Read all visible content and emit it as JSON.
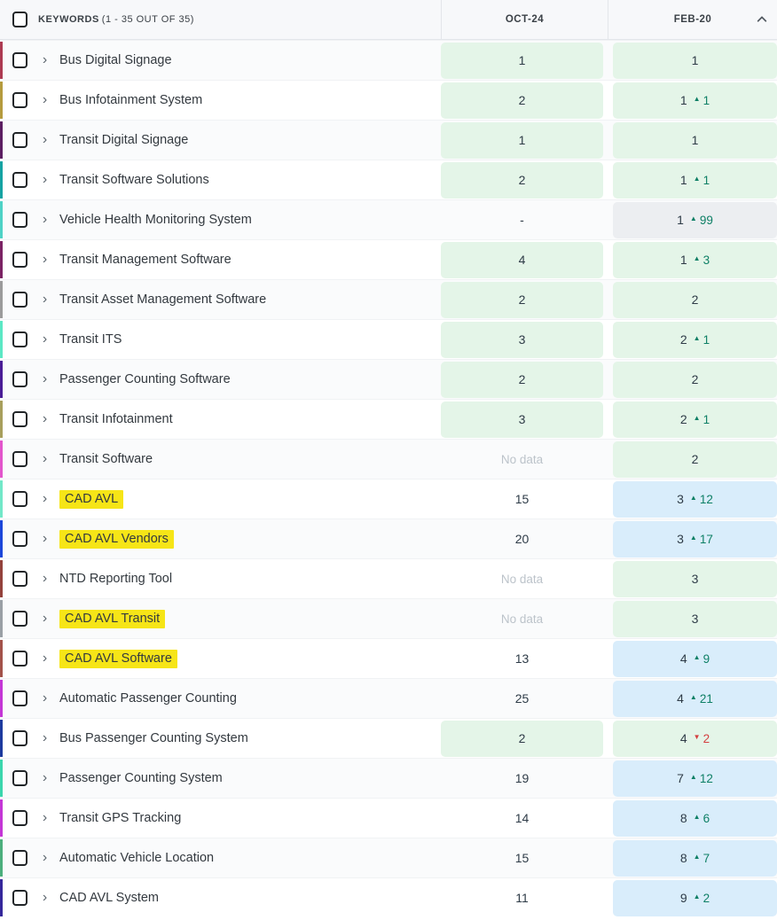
{
  "header": {
    "keywords_label": "KEYWORDS",
    "keywords_count": "(1 - 35 OUT OF 35)",
    "col1": "OCT-24",
    "col2": "FEB-20",
    "sort_icon": "chevron-up"
  },
  "icons": {
    "chevron_right": "›",
    "up_triangle": "▲",
    "down_triangle": "▼"
  },
  "colors": {
    "cell_green": "#e4f5e8",
    "cell_blue": "#d9edfb",
    "cell_gray": "#eceef1",
    "change_up": "#0d7f65",
    "change_down": "#d43f3f",
    "highlight_yellow": "#f6e517"
  },
  "rows": [
    {
      "keyword": "Bus Digital Signage",
      "highlight": false,
      "edge_color": "#ad3b52",
      "oct": {
        "value": "1",
        "bg": "green"
      },
      "feb": {
        "value": "1",
        "bg": "green"
      }
    },
    {
      "keyword": "Bus Infotainment System",
      "highlight": false,
      "edge_color": "#b59b3e",
      "oct": {
        "value": "2",
        "bg": "green"
      },
      "feb": {
        "value": "1",
        "bg": "green",
        "change": {
          "dir": "up",
          "amount": "1"
        }
      }
    },
    {
      "keyword": "Transit Digital Signage",
      "highlight": false,
      "edge_color": "#5c1e62",
      "oct": {
        "value": "1",
        "bg": "green"
      },
      "feb": {
        "value": "1",
        "bg": "green"
      }
    },
    {
      "keyword": "Transit Software Solutions",
      "highlight": false,
      "edge_color": "#15a3a3",
      "oct": {
        "value": "2",
        "bg": "green"
      },
      "feb": {
        "value": "1",
        "bg": "green",
        "change": {
          "dir": "up",
          "amount": "1"
        }
      }
    },
    {
      "keyword": "Vehicle Health Monitoring System",
      "highlight": false,
      "edge_color": "#4ed2c6",
      "oct": {
        "value": "-",
        "bg": "none"
      },
      "feb": {
        "value": "1",
        "bg": "gray",
        "change": {
          "dir": "up",
          "amount": "99"
        }
      }
    },
    {
      "keyword": "Transit Management Software",
      "highlight": false,
      "edge_color": "#7b2364",
      "oct": {
        "value": "4",
        "bg": "green"
      },
      "feb": {
        "value": "1",
        "bg": "green",
        "change": {
          "dir": "up",
          "amount": "3"
        }
      }
    },
    {
      "keyword": "Transit Asset Management Software",
      "highlight": false,
      "edge_color": "#9b9b9b",
      "oct": {
        "value": "2",
        "bg": "green"
      },
      "feb": {
        "value": "2",
        "bg": "green"
      }
    },
    {
      "keyword": "Transit ITS",
      "highlight": false,
      "edge_color": "#5be8c4",
      "oct": {
        "value": "3",
        "bg": "green"
      },
      "feb": {
        "value": "2",
        "bg": "green",
        "change": {
          "dir": "up",
          "amount": "1"
        }
      }
    },
    {
      "keyword": "Passenger Counting Software",
      "highlight": false,
      "edge_color": "#4a1d96",
      "oct": {
        "value": "2",
        "bg": "green"
      },
      "feb": {
        "value": "2",
        "bg": "green"
      }
    },
    {
      "keyword": "Transit Infotainment",
      "highlight": false,
      "edge_color": "#a89f5c",
      "oct": {
        "value": "3",
        "bg": "green"
      },
      "feb": {
        "value": "2",
        "bg": "green",
        "change": {
          "dir": "up",
          "amount": "1"
        }
      }
    },
    {
      "keyword": "Transit Software",
      "highlight": false,
      "edge_color": "#e355cc",
      "oct": {
        "value": "No data",
        "bg": "none"
      },
      "feb": {
        "value": "2",
        "bg": "green"
      }
    },
    {
      "keyword": "CAD AVL",
      "highlight": true,
      "edge_color": "#72e8c8",
      "oct": {
        "value": "15",
        "bg": "none"
      },
      "feb": {
        "value": "3",
        "bg": "blue",
        "change": {
          "dir": "up",
          "amount": "12"
        }
      }
    },
    {
      "keyword": "CAD AVL Vendors",
      "highlight": true,
      "edge_color": "#1c47da",
      "oct": {
        "value": "20",
        "bg": "none"
      },
      "feb": {
        "value": "3",
        "bg": "blue",
        "change": {
          "dir": "up",
          "amount": "17"
        }
      }
    },
    {
      "keyword": "NTD Reporting Tool",
      "highlight": false,
      "edge_color": "#93423c",
      "oct": {
        "value": "No data",
        "bg": "none"
      },
      "feb": {
        "value": "3",
        "bg": "green"
      }
    },
    {
      "keyword": "CAD AVL Transit",
      "highlight": true,
      "edge_color": "#9aa0a6",
      "oct": {
        "value": "No data",
        "bg": "none"
      },
      "feb": {
        "value": "3",
        "bg": "green"
      }
    },
    {
      "keyword": "CAD AVL Software",
      "highlight": true,
      "edge_color": "#a3524a",
      "oct": {
        "value": "13",
        "bg": "none"
      },
      "feb": {
        "value": "4",
        "bg": "blue",
        "change": {
          "dir": "up",
          "amount": "9"
        }
      }
    },
    {
      "keyword": "Automatic Passenger Counting",
      "highlight": false,
      "edge_color": "#c436d6",
      "oct": {
        "value": "25",
        "bg": "none"
      },
      "feb": {
        "value": "4",
        "bg": "blue",
        "change": {
          "dir": "up",
          "amount": "21"
        }
      }
    },
    {
      "keyword": "Bus Passenger Counting System",
      "highlight": false,
      "edge_color": "#1d3a9e",
      "oct": {
        "value": "2",
        "bg": "green"
      },
      "feb": {
        "value": "4",
        "bg": "green",
        "change": {
          "dir": "down",
          "amount": "2"
        }
      }
    },
    {
      "keyword": "Passenger Counting System",
      "highlight": false,
      "edge_color": "#3bd6ad",
      "oct": {
        "value": "19",
        "bg": "none"
      },
      "feb": {
        "value": "7",
        "bg": "blue",
        "change": {
          "dir": "up",
          "amount": "12"
        }
      }
    },
    {
      "keyword": "Transit GPS Tracking",
      "highlight": false,
      "edge_color": "#c436d6",
      "oct": {
        "value": "14",
        "bg": "none"
      },
      "feb": {
        "value": "8",
        "bg": "blue",
        "change": {
          "dir": "up",
          "amount": "6"
        }
      }
    },
    {
      "keyword": "Automatic Vehicle Location",
      "highlight": false,
      "edge_color": "#4caf7d",
      "oct": {
        "value": "15",
        "bg": "none"
      },
      "feb": {
        "value": "8",
        "bg": "blue",
        "change": {
          "dir": "up",
          "amount": "7"
        }
      }
    },
    {
      "keyword": "CAD AVL System",
      "highlight": false,
      "edge_color": "#35279b",
      "oct": {
        "value": "11",
        "bg": "none"
      },
      "feb": {
        "value": "9",
        "bg": "blue",
        "change": {
          "dir": "up",
          "amount": "2"
        }
      }
    }
  ]
}
